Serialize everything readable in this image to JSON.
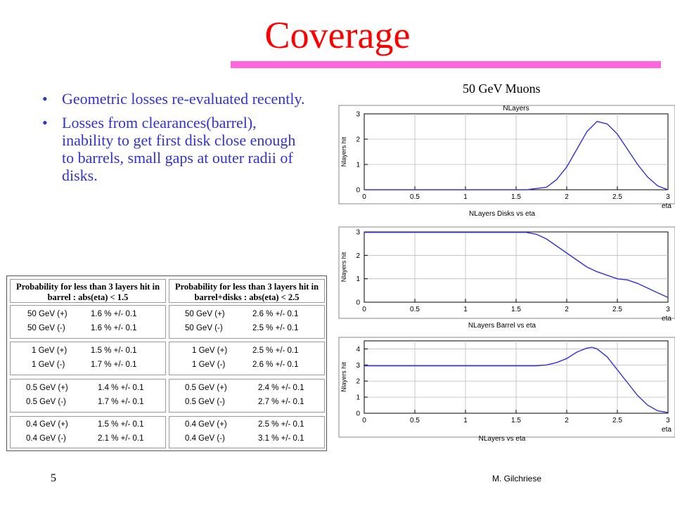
{
  "slide": {
    "title": "Coverage",
    "bullets": [
      "Geometric losses re-evaluated recently.",
      "Losses from clearances(barrel), inability to get first disk close enough to barrels, small gaps at outer radii of disks."
    ],
    "bullet_symbol": "•",
    "caption": "50 GeV Muons",
    "slide_number": "5",
    "author": "M. Gilchriese",
    "colors": {
      "title": "#ff0000",
      "rule": "#ff66dd",
      "bullet_text": "#3333cc",
      "plot_line": "#3333cc"
    }
  },
  "table": {
    "headers": [
      "Probability for less than 3 layers hit in barrel : abs(eta) < 1.5",
      "Probability for less than 3 layers hit in barrel+disks : abs(eta) < 2.5"
    ],
    "groups": [
      {
        "left": [
          [
            "50 GeV (+)",
            "1.6 % +/- 0.1"
          ],
          [
            "50 GeV (-)",
            "1.6 % +/- 0.1"
          ]
        ],
        "right": [
          [
            "50 GeV (+)",
            "2.6 % +/- 0.1"
          ],
          [
            "50 GeV (-)",
            "2.5 % +/- 0.1"
          ]
        ]
      },
      {
        "left": [
          [
            "1 GeV (+)",
            "1.5 % +/- 0.1"
          ],
          [
            "1 GeV (-)",
            "1.7 % +/- 0.1"
          ]
        ],
        "right": [
          [
            "1 GeV (+)",
            "2.5 % +/- 0.1"
          ],
          [
            "1 GeV (-)",
            "2.6 % +/- 0.1"
          ]
        ]
      },
      {
        "left": [
          [
            "0.5 GeV (+)",
            "1.4 % +/- 0.1"
          ],
          [
            "0.5 GeV (-)",
            "1.7 % +/- 0.1"
          ]
        ],
        "right": [
          [
            "0.5 GeV (+)",
            "2.4 % +/- 0.1"
          ],
          [
            "0.5 GeV (-)",
            "2.7 % +/- 0.1"
          ]
        ]
      },
      {
        "left": [
          [
            "0.4 GeV (+)",
            "1.5 % +/- 0.1"
          ],
          [
            "0.4 GeV (-)",
            "2.1 % +/- 0.1"
          ]
        ],
        "right": [
          [
            "0.4 GeV (+)",
            "2.5 % +/- 0.1"
          ],
          [
            "0.4 GeV (-)",
            "3.1 % +/- 0.1"
          ]
        ]
      }
    ]
  },
  "chart_data": [
    {
      "type": "line",
      "title": "NLayers",
      "ylabel": "Nlayers hit",
      "xlabel": "eta",
      "footer": "NLayers Disks vs eta",
      "xlim": [
        0,
        3
      ],
      "ylim": [
        0,
        3
      ],
      "grid": true,
      "xticks": [
        "0",
        "0.5",
        "1",
        "1.5",
        "2",
        "2.5",
        "3"
      ],
      "yticks": [
        "0",
        "1",
        "2",
        "3"
      ],
      "series": [
        {
          "x": [
            0,
            1.6,
            1.8,
            1.9,
            2.0,
            2.1,
            2.2,
            2.3,
            2.4,
            2.5,
            2.6,
            2.7,
            2.8,
            2.9,
            3.0
          ],
          "y": [
            0,
            0,
            0.1,
            0.4,
            0.9,
            1.6,
            2.3,
            2.7,
            2.6,
            2.2,
            1.6,
            1.0,
            0.5,
            0.15,
            0
          ]
        }
      ]
    },
    {
      "type": "line",
      "title": "",
      "ylabel": "Nlayers hit",
      "xlabel": "eta",
      "footer": "NLayers Barrel vs eta",
      "xlim": [
        0,
        3
      ],
      "ylim": [
        0,
        3
      ],
      "grid": true,
      "xticks": [
        "0",
        "0.5",
        "1",
        "1.5",
        "2",
        "2.5",
        "3"
      ],
      "yticks": [
        "0",
        "1",
        "2",
        "3"
      ],
      "series": [
        {
          "x": [
            0,
            1.6,
            1.7,
            1.8,
            1.9,
            2.0,
            2.1,
            2.2,
            2.3,
            2.4,
            2.5,
            2.6,
            2.7,
            2.8,
            2.9,
            3.0
          ],
          "y": [
            2.98,
            2.98,
            2.9,
            2.7,
            2.4,
            2.1,
            1.8,
            1.5,
            1.3,
            1.15,
            1.0,
            0.95,
            0.8,
            0.6,
            0.4,
            0.2
          ]
        }
      ]
    },
    {
      "type": "line",
      "title": "",
      "ylabel": "Nlayers hit",
      "xlabel": "eta",
      "footer": "NLayers vs eta",
      "xlim": [
        0,
        3
      ],
      "ylim": [
        0,
        4.5
      ],
      "grid": true,
      "xticks": [
        "0",
        "0.5",
        "1",
        "1.5",
        "2",
        "2.5",
        "3"
      ],
      "yticks": [
        "0",
        "1",
        "2",
        "3",
        "4"
      ],
      "series": [
        {
          "x": [
            0,
            1.5,
            1.7,
            1.8,
            1.9,
            2.0,
            2.1,
            2.2,
            2.25,
            2.3,
            2.4,
            2.5,
            2.6,
            2.7,
            2.8,
            2.9,
            3.0
          ],
          "y": [
            2.95,
            2.95,
            2.95,
            3.0,
            3.15,
            3.4,
            3.8,
            4.05,
            4.1,
            4.0,
            3.5,
            2.7,
            1.9,
            1.1,
            0.5,
            0.15,
            0.05
          ]
        }
      ]
    }
  ]
}
